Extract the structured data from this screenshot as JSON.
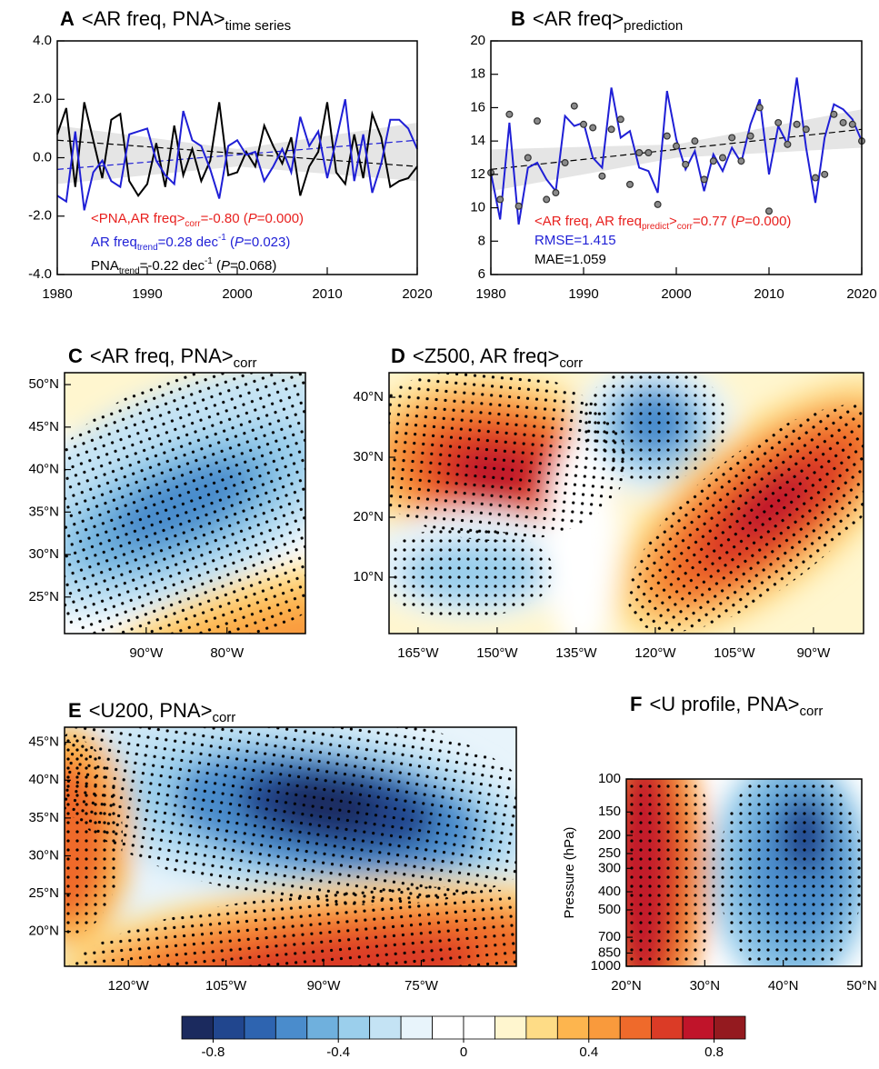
{
  "chart_data": [
    {
      "type": "line",
      "label": "A",
      "title": "<AR freq, PNA>",
      "title_sub": "time series",
      "x": [
        1980,
        1981,
        1982,
        1983,
        1984,
        1985,
        1986,
        1987,
        1988,
        1989,
        1990,
        1991,
        1992,
        1993,
        1994,
        1995,
        1996,
        1997,
        1998,
        1999,
        2000,
        2001,
        2002,
        2003,
        2004,
        2005,
        2006,
        2007,
        2008,
        2009,
        2010,
        2011,
        2012,
        2013,
        2014,
        2015,
        2016,
        2017,
        2018,
        2019,
        2020
      ],
      "series": [
        {
          "color": "#000000",
          "style": "line",
          "values": [
            0.8,
            1.7,
            -1.0,
            1.9,
            0.6,
            -0.7,
            1.3,
            1.5,
            -0.8,
            -1.3,
            -0.9,
            0.5,
            -1.0,
            1.1,
            -0.6,
            0.3,
            -0.8,
            -0.1,
            1.9,
            -0.6,
            -0.5,
            0.2,
            -0.3,
            1.1,
            0.4,
            -0.2,
            0.7,
            -1.3,
            -0.3,
            0.2,
            1.9,
            -0.5,
            -0.9,
            0.8,
            -0.7,
            1.5,
            0.7,
            -1.0,
            -0.8,
            -0.7,
            -0.3
          ]
        },
        {
          "color": "#1f1fd6",
          "style": "line",
          "values": [
            -1.3,
            -1.5,
            0.9,
            -1.8,
            -0.5,
            -0.1,
            -0.8,
            -1.0,
            0.8,
            0.9,
            1.0,
            -0.1,
            -0.6,
            -0.9,
            1.6,
            0.6,
            0.4,
            -0.4,
            -1.4,
            0.4,
            0.6,
            0.1,
            0.2,
            -0.8,
            -0.3,
            0.3,
            -0.5,
            1.4,
            0.4,
            0.9,
            -0.7,
            0.6,
            2.0,
            -0.8,
            0.8,
            -1.2,
            -0.2,
            1.3,
            1.3,
            1.0,
            0.3
          ]
        }
      ],
      "trends": [
        {
          "color": "#000000",
          "x": [
            1980,
            2020
          ],
          "values": [
            0.6,
            -0.3
          ]
        },
        {
          "color": "#1f1fd6",
          "x": [
            1980,
            2020
          ],
          "values": [
            -0.4,
            0.6
          ]
        }
      ],
      "bands": [
        {
          "color": "#dcdcdc",
          "x": [
            1980,
            2000,
            2020
          ],
          "upper": [
            1.1,
            0.3,
            1.2
          ],
          "lower": [
            -0.9,
            -0.3,
            -0.8
          ]
        }
      ],
      "xlim": [
        1980,
        2020
      ],
      "xticks": [
        1980,
        1990,
        2000,
        2010,
        2020
      ],
      "ylim": [
        -4,
        4
      ],
      "yticks": [
        {
          "value": -4,
          "label": "-4.0"
        },
        {
          "value": -2,
          "label": "-2.0"
        },
        {
          "value": 0,
          "label": "0.0"
        },
        {
          "value": 2,
          "label": "2.0"
        },
        {
          "value": 4,
          "label": "4.0"
        }
      ],
      "annotations": [
        {
          "color": "#e8201e",
          "parts": [
            {
              "text": "<PNA,AR freq>"
            },
            {
              "text": "corr",
              "style": "sub"
            },
            {
              "text": "=-0.80  ("
            },
            {
              "text": "P",
              "style": "italic"
            },
            {
              "text": "=0.000)"
            }
          ]
        },
        {
          "color": "#1f1fd6",
          "parts": [
            {
              "text": "AR freq"
            },
            {
              "text": "trend",
              "style": "sub"
            },
            {
              "text": "=0.28 dec"
            },
            {
              "text": "-1",
              "style": "sup"
            },
            {
              "text": " ("
            },
            {
              "text": "P",
              "style": "italic"
            },
            {
              "text": "=0.023)"
            }
          ]
        },
        {
          "color": "#000000",
          "parts": [
            {
              "text": "PNA"
            },
            {
              "text": "trend",
              "style": "sub"
            },
            {
              "text": "=-0.22 dec"
            },
            {
              "text": "-1",
              "style": "sup"
            },
            {
              "text": " ("
            },
            {
              "text": "P",
              "style": "italic"
            },
            {
              "text": "=0.068)"
            }
          ]
        }
      ]
    },
    {
      "type": "line",
      "label": "B",
      "title": "<AR freq>",
      "title_sub": "prediction",
      "x": [
        1980,
        1981,
        1982,
        1983,
        1984,
        1985,
        1986,
        1987,
        1988,
        1989,
        1990,
        1991,
        1992,
        1993,
        1994,
        1995,
        1996,
        1997,
        1998,
        1999,
        2000,
        2001,
        2002,
        2003,
        2004,
        2005,
        2006,
        2007,
        2008,
        2009,
        2010,
        2011,
        2012,
        2013,
        2014,
        2015,
        2016,
        2017,
        2018,
        2019,
        2020
      ],
      "series": [
        {
          "color": "#1f1fd6",
          "style": "line",
          "values": [
            12.1,
            9.3,
            15.1,
            9.0,
            12.4,
            12.7,
            11.7,
            11.0,
            15.5,
            14.9,
            15.1,
            13.0,
            12.4,
            17.2,
            14.2,
            14.6,
            12.4,
            12.2,
            10.9,
            17.0,
            14.1,
            12.3,
            13.4,
            11.0,
            13.2,
            12.2,
            13.6,
            12.7,
            15.0,
            16.5,
            12.0,
            14.9,
            13.8,
            17.8,
            13.6,
            10.3,
            14.2,
            16.2,
            15.9,
            15.3,
            14.0
          ]
        },
        {
          "color": "#8a8a8a",
          "style": "markers",
          "values": [
            12.1,
            10.5,
            15.6,
            10.1,
            13.0,
            15.2,
            10.5,
            10.9,
            12.7,
            16.1,
            15.0,
            14.8,
            11.9,
            14.7,
            15.3,
            11.4,
            13.3,
            13.3,
            10.2,
            14.3,
            13.7,
            12.6,
            14.0,
            11.7,
            12.8,
            13.0,
            14.2,
            12.8,
            14.3,
            16.0,
            9.8,
            15.1,
            13.8,
            15.0,
            14.7,
            11.8,
            12.0,
            15.6,
            15.1,
            15.0,
            14.0
          ]
        }
      ],
      "trends": [
        {
          "color": "#000000",
          "x": [
            1980,
            2020
          ],
          "values": [
            12.3,
            14.7
          ]
        }
      ],
      "bands": [
        {
          "color": "#dcdcdc",
          "x": [
            1980,
            2000,
            2020
          ],
          "upper": [
            13.5,
            13.8,
            15.9
          ],
          "lower": [
            11.0,
            13.0,
            13.6
          ]
        }
      ],
      "xlim": [
        1980,
        2020
      ],
      "xticks": [
        1980,
        1990,
        2000,
        2010,
        2020
      ],
      "ylim": [
        6,
        20
      ],
      "yticks": [
        6,
        8,
        10,
        12,
        14,
        16,
        18,
        20
      ],
      "annotations": [
        {
          "color": "#e8201e",
          "parts": [
            {
              "text": "<AR freq, AR freq"
            },
            {
              "text": "predict",
              "style": "sub"
            },
            {
              "text": ">"
            },
            {
              "text": "corr",
              "style": "sub"
            },
            {
              "text": "=0.77 ("
            },
            {
              "text": "P",
              "style": "italic"
            },
            {
              "text": "=0.000)"
            }
          ]
        },
        {
          "color": "#1f1fd6",
          "parts": [
            {
              "text": "RMSE=1.415"
            }
          ]
        },
        {
          "color": "#000000",
          "parts": [
            {
              "text": "MAE=1.059"
            }
          ]
        }
      ]
    },
    {
      "type": "map",
      "label": "C",
      "title": "<AR freq, PNA>",
      "title_sub": "corr",
      "xlim": [
        -100.1,
        -70.3
      ],
      "xticks": [
        {
          "value": -90,
          "label": "90°W"
        },
        {
          "value": -80,
          "label": "80°W"
        }
      ],
      "ylim": [
        20.7,
        51.4
      ],
      "yticks": [
        {
          "value": 25,
          "label": "25°N"
        },
        {
          "value": 30,
          "label": "30°N"
        },
        {
          "value": 35,
          "label": "35°N"
        },
        {
          "value": 40,
          "label": "40°N"
        },
        {
          "value": 45,
          "label": "45°N"
        },
        {
          "value": 50,
          "label": "50°N"
        }
      ]
    },
    {
      "type": "map",
      "label": "D",
      "title": "<Z500, AR freq>",
      "title_sub": "corr",
      "xlim": [
        -170.5,
        -80.5
      ],
      "xticks": [
        {
          "value": -165,
          "label": "165°W"
        },
        {
          "value": -150,
          "label": "150°W"
        },
        {
          "value": -135,
          "label": "135°W"
        },
        {
          "value": -120,
          "label": "120°W"
        },
        {
          "value": -105,
          "label": "105°W"
        },
        {
          "value": -90,
          "label": "90°W"
        }
      ],
      "ylim": [
        0.6,
        44.1
      ],
      "yticks": [
        {
          "value": 10,
          "label": "10°N"
        },
        {
          "value": 20,
          "label": "20°N"
        },
        {
          "value": 30,
          "label": "30°N"
        },
        {
          "value": 40,
          "label": "40°N"
        }
      ]
    },
    {
      "type": "map",
      "label": "E",
      "title": "<U200, PNA>",
      "title_sub": "corr",
      "xlim": [
        -129.8,
        -60.4
      ],
      "xticks": [
        {
          "value": -120,
          "label": "120°W"
        },
        {
          "value": -105,
          "label": "105°W"
        },
        {
          "value": -90,
          "label": "90°W"
        },
        {
          "value": -75,
          "label": "75°W"
        }
      ],
      "ylim": [
        15.4,
        47.0
      ],
      "yticks": [
        {
          "value": 20,
          "label": "20°N"
        },
        {
          "value": 25,
          "label": "25°N"
        },
        {
          "value": 30,
          "label": "30°N"
        },
        {
          "value": 35,
          "label": "35°N"
        },
        {
          "value": 40,
          "label": "40°N"
        },
        {
          "value": 45,
          "label": "45°N"
        }
      ]
    },
    {
      "type": "map",
      "label": "F",
      "title": "<U profile, PNA>",
      "title_sub": "corr",
      "ylabel": "Pressure (hPa)",
      "ylog": true,
      "xlim": [
        20,
        50
      ],
      "xticks": [
        {
          "value": 20,
          "label": "20°N"
        },
        {
          "value": 30,
          "label": "30°N"
        },
        {
          "value": 40,
          "label": "40°N"
        },
        {
          "value": 50,
          "label": "50°N"
        }
      ],
      "ylim": [
        1000,
        100
      ],
      "yticks": [
        100,
        150,
        200,
        250,
        300,
        400,
        500,
        700,
        850,
        1000
      ]
    },
    {
      "type": "colorbar",
      "colors": [
        "#1b2a5e",
        "#21468e",
        "#2e64b0",
        "#4a8ccc",
        "#6fb0dd",
        "#9bcfec",
        "#c4e3f4",
        "#e8f4fb",
        "#ffffff",
        "#ffffff",
        "#fff6cf",
        "#fedc86",
        "#fdb54e",
        "#f99a3c",
        "#ef6a2b",
        "#db3b26",
        "#c0142a",
        "#941a1f"
      ],
      "xlim": [
        -0.9,
        0.9
      ],
      "xticks": [
        -0.8,
        -0.4,
        0,
        0.4,
        0.8
      ]
    }
  ]
}
